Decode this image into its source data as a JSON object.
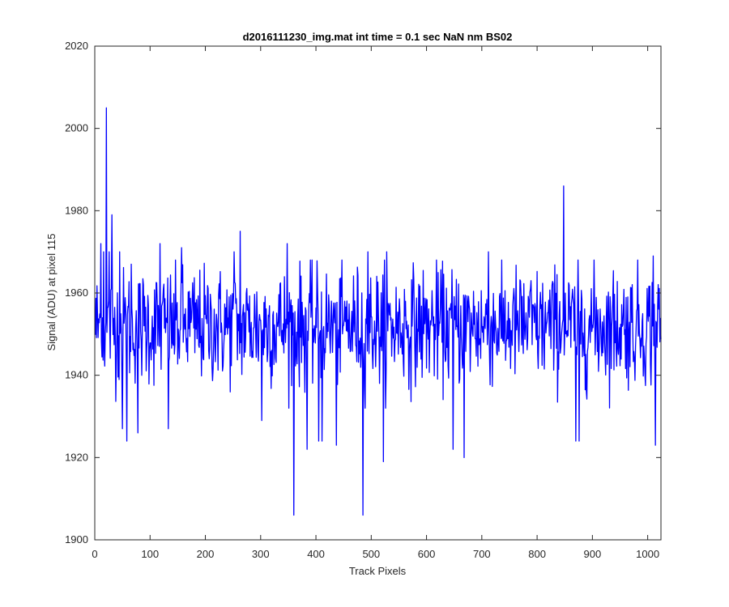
{
  "chart_data": {
    "type": "line",
    "title": "d2016111230_img.mat int time = 0.1 sec  NaN nm BS02",
    "xlabel": "Track Pixels",
    "ylabel": "Signal (ADU) at pixel 115",
    "xlim": [
      0,
      1024
    ],
    "ylim": [
      1900,
      2020
    ],
    "xticks": [
      0,
      100,
      200,
      300,
      400,
      500,
      600,
      700,
      800,
      900,
      1000
    ],
    "yticks": [
      1900,
      1920,
      1940,
      1960,
      1980,
      2000,
      2020
    ],
    "grid": false,
    "series": [
      {
        "color": "#0000ff",
        "x_start": 1,
        "x_step": 1,
        "count": 1024,
        "mean": 1952,
        "noise_std": 7,
        "peaks": [
          {
            "x": 21,
            "y": 2005
          },
          {
            "x": 31,
            "y": 1979
          },
          {
            "x": 11,
            "y": 1972
          },
          {
            "x": 16,
            "y": 1970
          },
          {
            "x": 26,
            "y": 1970
          },
          {
            "x": 45,
            "y": 1970
          },
          {
            "x": 66,
            "y": 1967
          },
          {
            "x": 118,
            "y": 1972
          },
          {
            "x": 157,
            "y": 1971
          },
          {
            "x": 263,
            "y": 1975
          },
          {
            "x": 252,
            "y": 1970
          },
          {
            "x": 348,
            "y": 1972
          },
          {
            "x": 494,
            "y": 1970
          },
          {
            "x": 528,
            "y": 1970
          },
          {
            "x": 712,
            "y": 1970
          },
          {
            "x": 848,
            "y": 1986
          },
          {
            "x": 1010,
            "y": 1969
          }
        ],
        "dips": [
          {
            "x": 360,
            "y": 1906
          },
          {
            "x": 485,
            "y": 1906
          },
          {
            "x": 58,
            "y": 1924
          },
          {
            "x": 78,
            "y": 1926
          },
          {
            "x": 50,
            "y": 1927
          },
          {
            "x": 133,
            "y": 1927
          },
          {
            "x": 302,
            "y": 1929
          },
          {
            "x": 384,
            "y": 1922
          },
          {
            "x": 405,
            "y": 1924
          },
          {
            "x": 411,
            "y": 1924
          },
          {
            "x": 437,
            "y": 1923
          },
          {
            "x": 522,
            "y": 1919
          },
          {
            "x": 648,
            "y": 1922
          },
          {
            "x": 668,
            "y": 1920
          },
          {
            "x": 870,
            "y": 1924
          },
          {
            "x": 876,
            "y": 1924
          },
          {
            "x": 1014,
            "y": 1923
          }
        ]
      }
    ]
  }
}
